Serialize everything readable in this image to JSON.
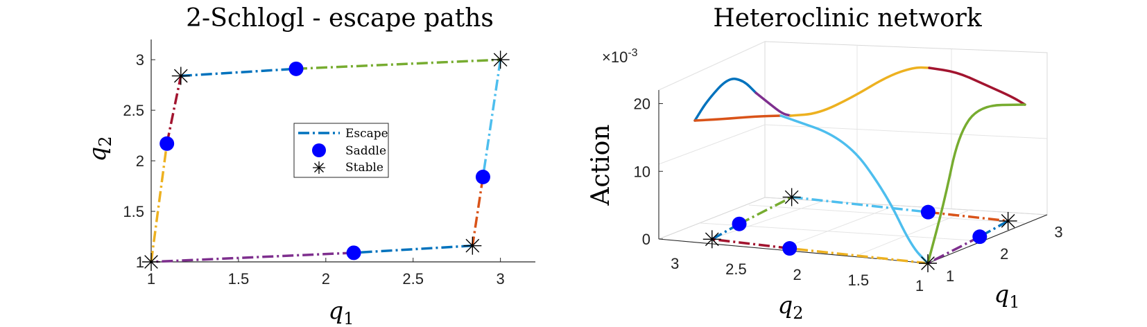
{
  "chart_data": [
    {
      "type": "line",
      "title": "2-Schlogl - escape paths",
      "xlabel": "q",
      "xlabel_sub": "1",
      "ylabel": "q",
      "ylabel_sub": "2",
      "xlim": [
        1,
        3.2
      ],
      "ylim": [
        1,
        3.2
      ],
      "xticks": [
        "1",
        "1.5",
        "2",
        "2.5",
        "3"
      ],
      "yticks": [
        "1",
        "1.5",
        "2",
        "2.5",
        "3"
      ],
      "grid": false,
      "legend": {
        "placement": "center",
        "entries": [
          "Escape",
          "Saddle",
          "Stable"
        ]
      },
      "stable_points": [
        [
          1.0,
          1.0
        ],
        [
          1.17,
          2.84
        ],
        [
          3.0,
          3.0
        ],
        [
          2.84,
          1.16
        ]
      ],
      "saddle_points": [
        [
          1.09,
          2.17
        ],
        [
          1.83,
          2.91
        ],
        [
          2.9,
          1.84
        ],
        [
          2.16,
          1.09
        ]
      ],
      "series": [
        {
          "color": "#0072BD",
          "points": [
            [
              1.17,
              2.84
            ],
            [
              1.83,
              2.91
            ]
          ]
        },
        {
          "color": "#77AC30",
          "points": [
            [
              1.83,
              2.91
            ],
            [
              3.0,
              3.0
            ]
          ]
        },
        {
          "color": "#4DBEEE",
          "points": [
            [
              3.0,
              3.0
            ],
            [
              2.9,
              1.84
            ]
          ]
        },
        {
          "color": "#D95319",
          "points": [
            [
              2.9,
              1.84
            ],
            [
              2.84,
              1.16
            ]
          ]
        },
        {
          "color": "#0072BD",
          "points": [
            [
              2.84,
              1.16
            ],
            [
              2.16,
              1.09
            ]
          ]
        },
        {
          "color": "#7E2F8E",
          "points": [
            [
              2.16,
              1.09
            ],
            [
              1.0,
              1.0
            ]
          ]
        },
        {
          "color": "#EDB120",
          "points": [
            [
              1.0,
              1.0
            ],
            [
              1.09,
              2.17
            ]
          ]
        },
        {
          "color": "#A2142F",
          "points": [
            [
              1.09,
              2.17
            ],
            [
              1.17,
              2.84
            ]
          ]
        }
      ]
    },
    {
      "type": "line",
      "title": "Heteroclinic network",
      "xlabel": "q",
      "xlabel_sub": "1",
      "ylabel": "q",
      "ylabel_sub": "2",
      "zlabel": "Action",
      "zscale_label": "×10",
      "zscale_exp": "-3",
      "xticks": [
        "1",
        "2",
        "3"
      ],
      "yticks": [
        "1",
        "1.5",
        "2",
        "2.5",
        "3"
      ],
      "zticks": [
        "0",
        "10",
        "20"
      ],
      "zlim": [
        0,
        22
      ],
      "grid": true,
      "stable_points": [
        [
          1.0,
          1.0
        ],
        [
          1.17,
          2.84
        ],
        [
          3.0,
          3.0
        ],
        [
          2.84,
          1.16
        ]
      ],
      "saddle_points": [
        [
          1.09,
          2.17
        ],
        [
          1.83,
          2.91
        ],
        [
          2.9,
          1.84
        ],
        [
          2.16,
          1.09
        ]
      ],
      "action_curves": [
        {
          "color": "#0072BD",
          "z": [
            15.0,
            17.5,
            20.0,
            21.0,
            20.4
          ]
        },
        {
          "color": "#7E2F8E",
          "z": [
            20.4,
            19.2,
            17.6,
            16.4
          ]
        },
        {
          "color": "#D95319",
          "z": [
            15.0,
            15.5,
            15.8,
            15.7
          ]
        },
        {
          "color": "#EDB120",
          "z": [
            16.4,
            16.8,
            18.0,
            19.8,
            21.2,
            22.3
          ]
        },
        {
          "color": "#A2142F",
          "z": [
            22.3,
            21.6,
            19.9,
            18.1,
            17.7
          ]
        },
        {
          "color": "#4DBEEE",
          "z": [
            15.7,
            13.8,
            9.0,
            3.5,
            0.0
          ]
        },
        {
          "color": "#77AC30",
          "z": [
            0.0,
            5.0,
            12.0,
            16.5,
            17.7
          ]
        }
      ]
    }
  ]
}
